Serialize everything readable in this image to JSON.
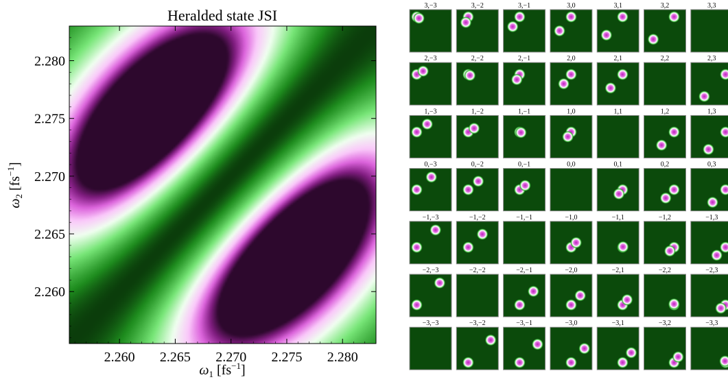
{
  "chart_data": [
    {
      "type": "heatmap",
      "title": "Heralded state JSI",
      "xlabel": "ω1 [fs−1]",
      "ylabel": "ω2 [fs−1]",
      "xlim": [
        2.2555,
        2.283
      ],
      "ylim": [
        2.2555,
        2.283
      ],
      "xticks": [
        2.26,
        2.265,
        2.27,
        2.275,
        2.28
      ],
      "yticks": [
        2.26,
        2.265,
        2.27,
        2.275,
        2.28
      ],
      "xtick_labels": [
        "2.260",
        "2.265",
        "2.270",
        "2.275",
        "2.280"
      ],
      "ytick_labels": [
        "2.260",
        "2.265",
        "2.270",
        "2.275",
        "2.280"
      ],
      "lobes": [
        {
          "omega1": 2.2665,
          "omega2": 2.2725,
          "peak": 1.0
        },
        {
          "omega1": 2.2725,
          "omega2": 2.2665,
          "peak": 1.0
        }
      ],
      "node_line": "ω1 = ω2",
      "colormap": {
        "low": "#0b3d0b",
        "mid": "#ffffff",
        "high": "#c020c0",
        "max": "#2a0a2a",
        "background": "#0f5a10"
      }
    },
    {
      "type": "heatmap",
      "panel_grid": {
        "rows": 7,
        "cols": 7,
        "row_indices": [
          3,
          2,
          1,
          0,
          -1,
          -2,
          -3
        ],
        "col_indices": [
          -3,
          -2,
          -1,
          0,
          1,
          2,
          3
        ],
        "labels": [
          [
            "3,−3",
            "3,−2",
            "3,−1",
            "3,0",
            "3,1",
            "3,2",
            "3,3"
          ],
          [
            "2,−3",
            "2,−2",
            "2,−1",
            "2,0",
            "2,1",
            "2,2",
            "2,3"
          ],
          [
            "1,−3",
            "1,−2",
            "1,−1",
            "1,0",
            "1,1",
            "1,2",
            "1,3"
          ],
          [
            "0,−3",
            "0,−2",
            "0,−1",
            "0,0",
            "0,1",
            "0,2",
            "0,3"
          ],
          [
            "−1,−3",
            "−1,−2",
            "−1,−1",
            "−1,0",
            "−1,1",
            "−1,2",
            "−1,3"
          ],
          [
            "−2,−3",
            "−2,−2",
            "−2,−1",
            "−2,0",
            "−2,1",
            "−2,2",
            "−2,3"
          ],
          [
            "−3,−3",
            "−3,−2",
            "−3,−1",
            "−3,0",
            "−3,1",
            "−3,2",
            "−3,3"
          ]
        ]
      },
      "colors": {
        "background": "#0b4a0b",
        "spot_rim": "#ffffff",
        "spot_core": "#c020c0"
      }
    }
  ]
}
